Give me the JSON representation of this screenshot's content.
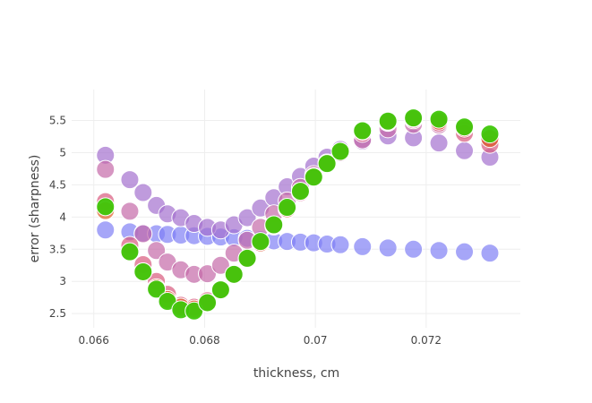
{
  "chart_data": {
    "type": "scatter",
    "title": "",
    "xlabel": "thickness, cm",
    "ylabel": "error (sharpness)",
    "xlim": [
      0.0656,
      0.0737
    ],
    "ylim": [
      2.28,
      5.98
    ],
    "x_ticks": [
      0.066,
      0.068,
      0.07,
      0.072
    ],
    "x_tick_labels": [
      "0.066",
      "0.068",
      "0.07",
      "0.072"
    ],
    "y_ticks": [
      2.5,
      3,
      3.5,
      4,
      4.5,
      5,
      5.5
    ],
    "y_tick_labels": [
      "2.5",
      "3",
      "3.5",
      "4",
      "4.5",
      "5",
      "5.5"
    ],
    "grid": true,
    "legend": "none",
    "series": [
      {
        "color": "#8080f5",
        "opacity": 0.7,
        "x": [
          0.06621,
          0.06665,
          0.06689,
          0.06713,
          0.06733,
          0.06757,
          0.06781,
          0.06805,
          0.06829,
          0.06853,
          0.06877,
          0.06901,
          0.06925,
          0.06949,
          0.06973,
          0.06997,
          0.07021,
          0.07045,
          0.07085,
          0.07131,
          0.07177,
          0.07223,
          0.07269,
          0.07315
        ],
        "y": [
          3.8,
          3.77,
          3.75,
          3.74,
          3.73,
          3.72,
          3.71,
          3.7,
          3.69,
          3.68,
          3.67,
          3.65,
          3.63,
          3.62,
          3.61,
          3.6,
          3.58,
          3.57,
          3.54,
          3.52,
          3.5,
          3.48,
          3.46,
          3.44
        ]
      },
      {
        "color": "#a470cf",
        "opacity": 0.7,
        "x": [
          0.06621,
          0.06665,
          0.06689,
          0.06713,
          0.06733,
          0.06757,
          0.06781,
          0.06805,
          0.06829,
          0.06853,
          0.06877,
          0.06901,
          0.06925,
          0.06949,
          0.06973,
          0.06997,
          0.07021,
          0.07045,
          0.07085,
          0.07131,
          0.07177,
          0.07223,
          0.07269,
          0.07315
        ],
        "y": [
          4.96,
          4.58,
          4.38,
          4.18,
          4.05,
          3.99,
          3.9,
          3.84,
          3.8,
          3.88,
          3.99,
          4.14,
          4.3,
          4.47,
          4.63,
          4.79,
          4.93,
          5.05,
          5.18,
          5.26,
          5.23,
          5.15,
          5.03,
          4.93
        ]
      },
      {
        "color": "#c56aa8",
        "opacity": 0.7,
        "x": [
          0.06621,
          0.06665,
          0.06689,
          0.06713,
          0.06733,
          0.06757,
          0.06781,
          0.06805,
          0.06829,
          0.06853,
          0.06877,
          0.06901,
          0.06925,
          0.06949,
          0.06973,
          0.06997,
          0.07021,
          0.07045,
          0.07085,
          0.07131,
          0.07177,
          0.07223,
          0.07269,
          0.07315
        ],
        "y": [
          4.74,
          4.09,
          3.74,
          3.48,
          3.3,
          3.18,
          3.11,
          3.12,
          3.25,
          3.44,
          3.64,
          3.84,
          4.05,
          4.25,
          4.46,
          4.66,
          4.84,
          5.0,
          5.2,
          5.37,
          5.44,
          5.43,
          5.35,
          5.22
        ]
      },
      {
        "color": "#d95a7d",
        "opacity": 0.7,
        "x": [
          0.06621,
          0.06665,
          0.06689,
          0.06713,
          0.06733,
          0.06757,
          0.06781,
          0.06805,
          0.06829,
          0.06853,
          0.06877,
          0.06901,
          0.06925,
          0.06949,
          0.06973,
          0.06997,
          0.07021,
          0.07045,
          0.07085,
          0.07131,
          0.07177,
          0.07223,
          0.07269,
          0.07315
        ],
        "y": [
          4.24,
          3.56,
          3.26,
          3.0,
          2.8,
          2.63,
          2.6,
          2.7,
          2.88,
          3.1,
          3.35,
          3.6,
          3.86,
          4.12,
          4.38,
          4.62,
          4.84,
          5.02,
          5.3,
          5.47,
          5.51,
          5.46,
          5.3,
          5.13
        ]
      },
      {
        "color": "#e0602a",
        "opacity": 0.7,
        "x": [
          0.06621,
          0.06665,
          0.06689,
          0.06713,
          0.06733,
          0.06757,
          0.06781,
          0.06805,
          0.06829,
          0.06853,
          0.06877,
          0.06901,
          0.06925,
          0.06949,
          0.06973,
          0.06997,
          0.07021,
          0.07045,
          0.07085,
          0.07131,
          0.07177,
          0.07223,
          0.07269,
          0.07315
        ],
        "y": [
          4.1,
          3.45,
          3.15,
          2.9,
          2.72,
          2.6,
          2.57,
          2.67,
          2.86,
          3.1,
          3.35,
          3.6,
          3.87,
          4.13,
          4.4,
          4.63,
          4.84,
          5.02,
          5.33,
          5.48,
          5.53,
          5.49,
          5.38,
          5.22
        ]
      },
      {
        "color": "#3fc70a",
        "opacity": 0.95,
        "x": [
          0.06621,
          0.06665,
          0.06689,
          0.06713,
          0.06733,
          0.06757,
          0.06781,
          0.06805,
          0.06829,
          0.06853,
          0.06877,
          0.06901,
          0.06925,
          0.06949,
          0.06973,
          0.06997,
          0.07021,
          0.07045,
          0.07085,
          0.07131,
          0.07177,
          0.07223,
          0.07269,
          0.07315
        ],
        "y": [
          4.16,
          3.46,
          3.15,
          2.88,
          2.69,
          2.56,
          2.54,
          2.67,
          2.87,
          3.11,
          3.36,
          3.62,
          3.88,
          4.15,
          4.4,
          4.62,
          4.83,
          5.02,
          5.34,
          5.49,
          5.54,
          5.52,
          5.4,
          5.29
        ]
      }
    ]
  }
}
